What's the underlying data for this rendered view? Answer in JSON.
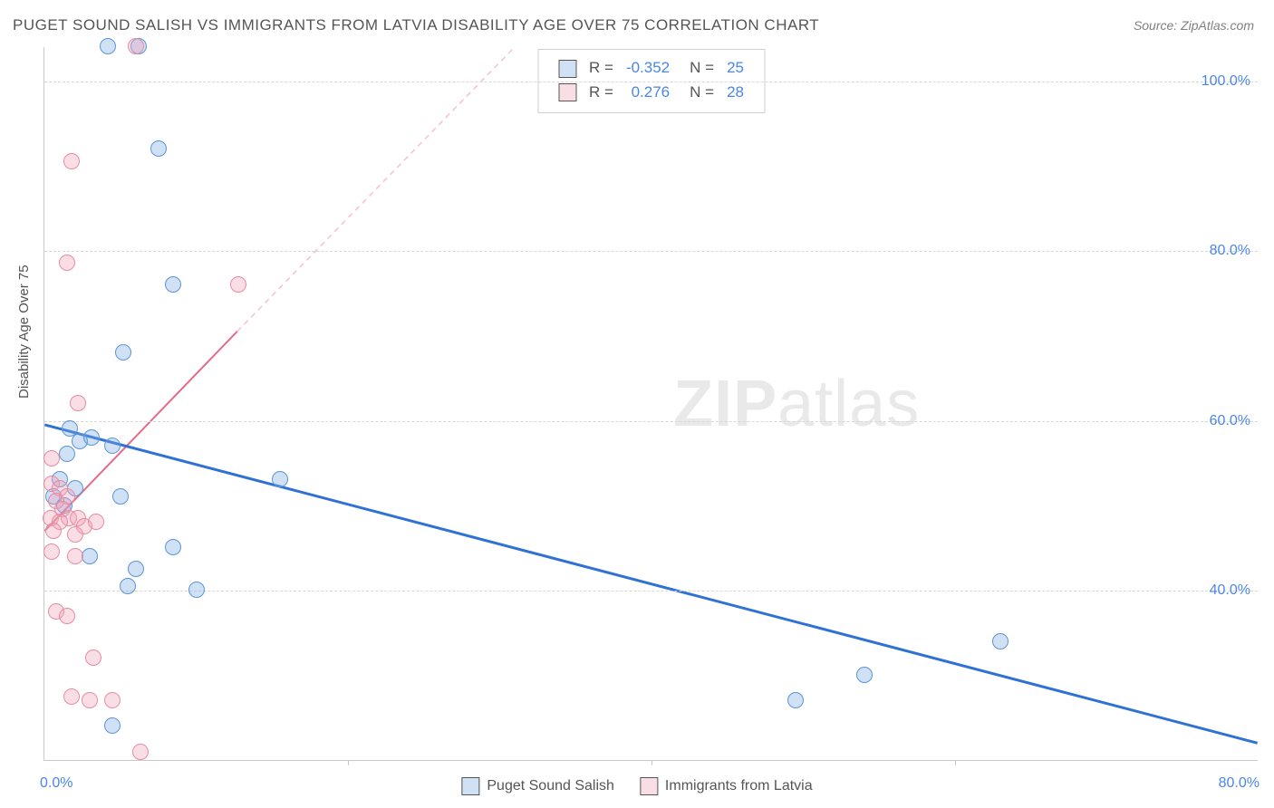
{
  "title": "PUGET SOUND SALISH VS IMMIGRANTS FROM LATVIA DISABILITY AGE OVER 75 CORRELATION CHART",
  "source": "Source: ZipAtlas.com",
  "y_axis_label": "Disability Age Over 75",
  "watermark_a": "ZIP",
  "watermark_b": "atlas",
  "chart": {
    "type": "scatter",
    "xlim": [
      0,
      80
    ],
    "ylim": [
      20,
      104
    ],
    "x_ticks_labeled": {
      "0": "0.0%",
      "80": "80.0%"
    },
    "x_tick_marks": [
      20,
      40,
      60
    ],
    "y_ticks": [
      {
        "v": 40,
        "label": "40.0%"
      },
      {
        "v": 60,
        "label": "60.0%"
      },
      {
        "v": 80,
        "label": "80.0%"
      },
      {
        "v": 100,
        "label": "100.0%"
      }
    ],
    "grid_color": "#d8d8d8",
    "axis_color": "#c9c9c9",
    "background": "#ffffff",
    "tick_font_color": "#4a86e8",
    "series": [
      {
        "name": "Puget Sound Salish",
        "color_fill": "rgba(120,170,230,0.35)",
        "color_stroke": "#5b95d6",
        "class": "pt-blue",
        "R": "-0.352",
        "N": "25",
        "trend": {
          "x1": 0,
          "y1": 59.5,
          "x2": 80,
          "y2": 22,
          "stroke": "#2f72d4",
          "width": 3,
          "dash": "none"
        },
        "points": [
          [
            4.2,
            104
          ],
          [
            6.2,
            104
          ],
          [
            7.5,
            92
          ],
          [
            1.7,
            59
          ],
          [
            2.3,
            57.5
          ],
          [
            3.1,
            58
          ],
          [
            4.5,
            57
          ],
          [
            8.5,
            76
          ],
          [
            5.2,
            68
          ],
          [
            1.0,
            53
          ],
          [
            2.0,
            52
          ],
          [
            0.6,
            51
          ],
          [
            5.0,
            51
          ],
          [
            1.3,
            50
          ],
          [
            15.5,
            53
          ],
          [
            3.0,
            44
          ],
          [
            8.5,
            45
          ],
          [
            6.0,
            42.5
          ],
          [
            5.5,
            40.5
          ],
          [
            10,
            40
          ],
          [
            4.5,
            24
          ],
          [
            54,
            30
          ],
          [
            49.5,
            27
          ],
          [
            63,
            34
          ],
          [
            1.5,
            56
          ]
        ]
      },
      {
        "name": "Immigrants from Latvia",
        "color_fill": "rgba(240,160,180,0.35)",
        "color_stroke": "#e88ba0",
        "class": "pt-pink",
        "R": "0.276",
        "N": "28",
        "trend": {
          "x1": 0,
          "y1": 47,
          "x2": 31,
          "y2": 104,
          "stroke": "#e76a88",
          "width": 2,
          "dash": "none"
        },
        "trend_ext": {
          "x1": 12.7,
          "y1": 70.5,
          "x2": 31,
          "y2": 104,
          "stroke": "#f4c1cd",
          "width": 1.5,
          "dash": "6 5"
        },
        "points": [
          [
            6.0,
            104
          ],
          [
            1.8,
            90.5
          ],
          [
            1.5,
            78.5
          ],
          [
            12.8,
            76
          ],
          [
            2.2,
            62
          ],
          [
            0.5,
            55.5
          ],
          [
            0.5,
            52.5
          ],
          [
            1.0,
            52
          ],
          [
            1.5,
            51
          ],
          [
            0.8,
            50.5
          ],
          [
            1.2,
            49.5
          ],
          [
            0.4,
            48.5
          ],
          [
            1.6,
            48.5
          ],
          [
            1.0,
            48
          ],
          [
            0.6,
            47
          ],
          [
            2.2,
            48.5
          ],
          [
            2.6,
            47.5
          ],
          [
            2.0,
            46.5
          ],
          [
            3.4,
            48
          ],
          [
            0.5,
            44.5
          ],
          [
            2.0,
            44
          ],
          [
            0.8,
            37.5
          ],
          [
            1.5,
            37
          ],
          [
            3.2,
            32
          ],
          [
            1.8,
            27.5
          ],
          [
            3.0,
            27
          ],
          [
            4.5,
            27
          ],
          [
            6.3,
            21
          ]
        ]
      }
    ]
  },
  "legend_top_labels": {
    "R": "R =",
    "N": "N ="
  },
  "legend_bottom": [
    {
      "sw": "sw-blue",
      "label": "Puget Sound Salish"
    },
    {
      "sw": "sw-pink",
      "label": "Immigrants from Latvia"
    }
  ]
}
